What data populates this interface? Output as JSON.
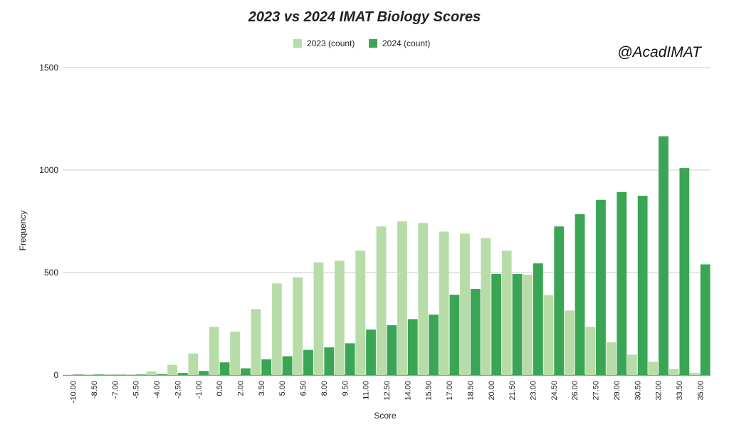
{
  "chart_data": {
    "type": "bar",
    "title": "2023 vs 2024 IMAT Biology Scores",
    "watermark": "@AcadIMAT",
    "x_label": "Score",
    "y_label": "Frequency",
    "categories": [
      "-10.00",
      "-8.50",
      "-7.00",
      "-5.50",
      "-4.00",
      "-2.50",
      "-1.00",
      "0.50",
      "2.00",
      "3.50",
      "5.00",
      "6.50",
      "8.00",
      "9.50",
      "11.00",
      "12.50",
      "14.00",
      "15.50",
      "17.00",
      "18.50",
      "20.00",
      "21.50",
      "23.00",
      "24.50",
      "26.00",
      "27.50",
      "29.00",
      "30.50",
      "32.00",
      "33.50",
      "35.00"
    ],
    "series": [
      {
        "name": "2023 (count)",
        "color": "#b7dca8",
        "values": [
          2,
          3,
          5,
          3,
          18,
          50,
          105,
          235,
          212,
          322,
          447,
          477,
          550,
          558,
          607,
          725,
          750,
          742,
          700,
          690,
          668,
          607,
          490,
          390,
          315,
          235,
          160,
          100,
          65,
          30,
          10
        ]
      },
      {
        "name": "2024 (count)",
        "color": "#3aa655",
        "values": [
          0,
          3,
          2,
          3,
          5,
          10,
          20,
          62,
          33,
          77,
          92,
          123,
          135,
          155,
          222,
          243,
          273,
          295,
          392,
          420,
          493,
          493,
          545,
          725,
          785,
          855,
          893,
          875,
          1165,
          1010,
          540
        ]
      }
    ],
    "ylim": [
      0,
      1500
    ],
    "yticks": [
      0,
      500,
      1000,
      1500
    ],
    "grid": true,
    "legend": "top"
  }
}
